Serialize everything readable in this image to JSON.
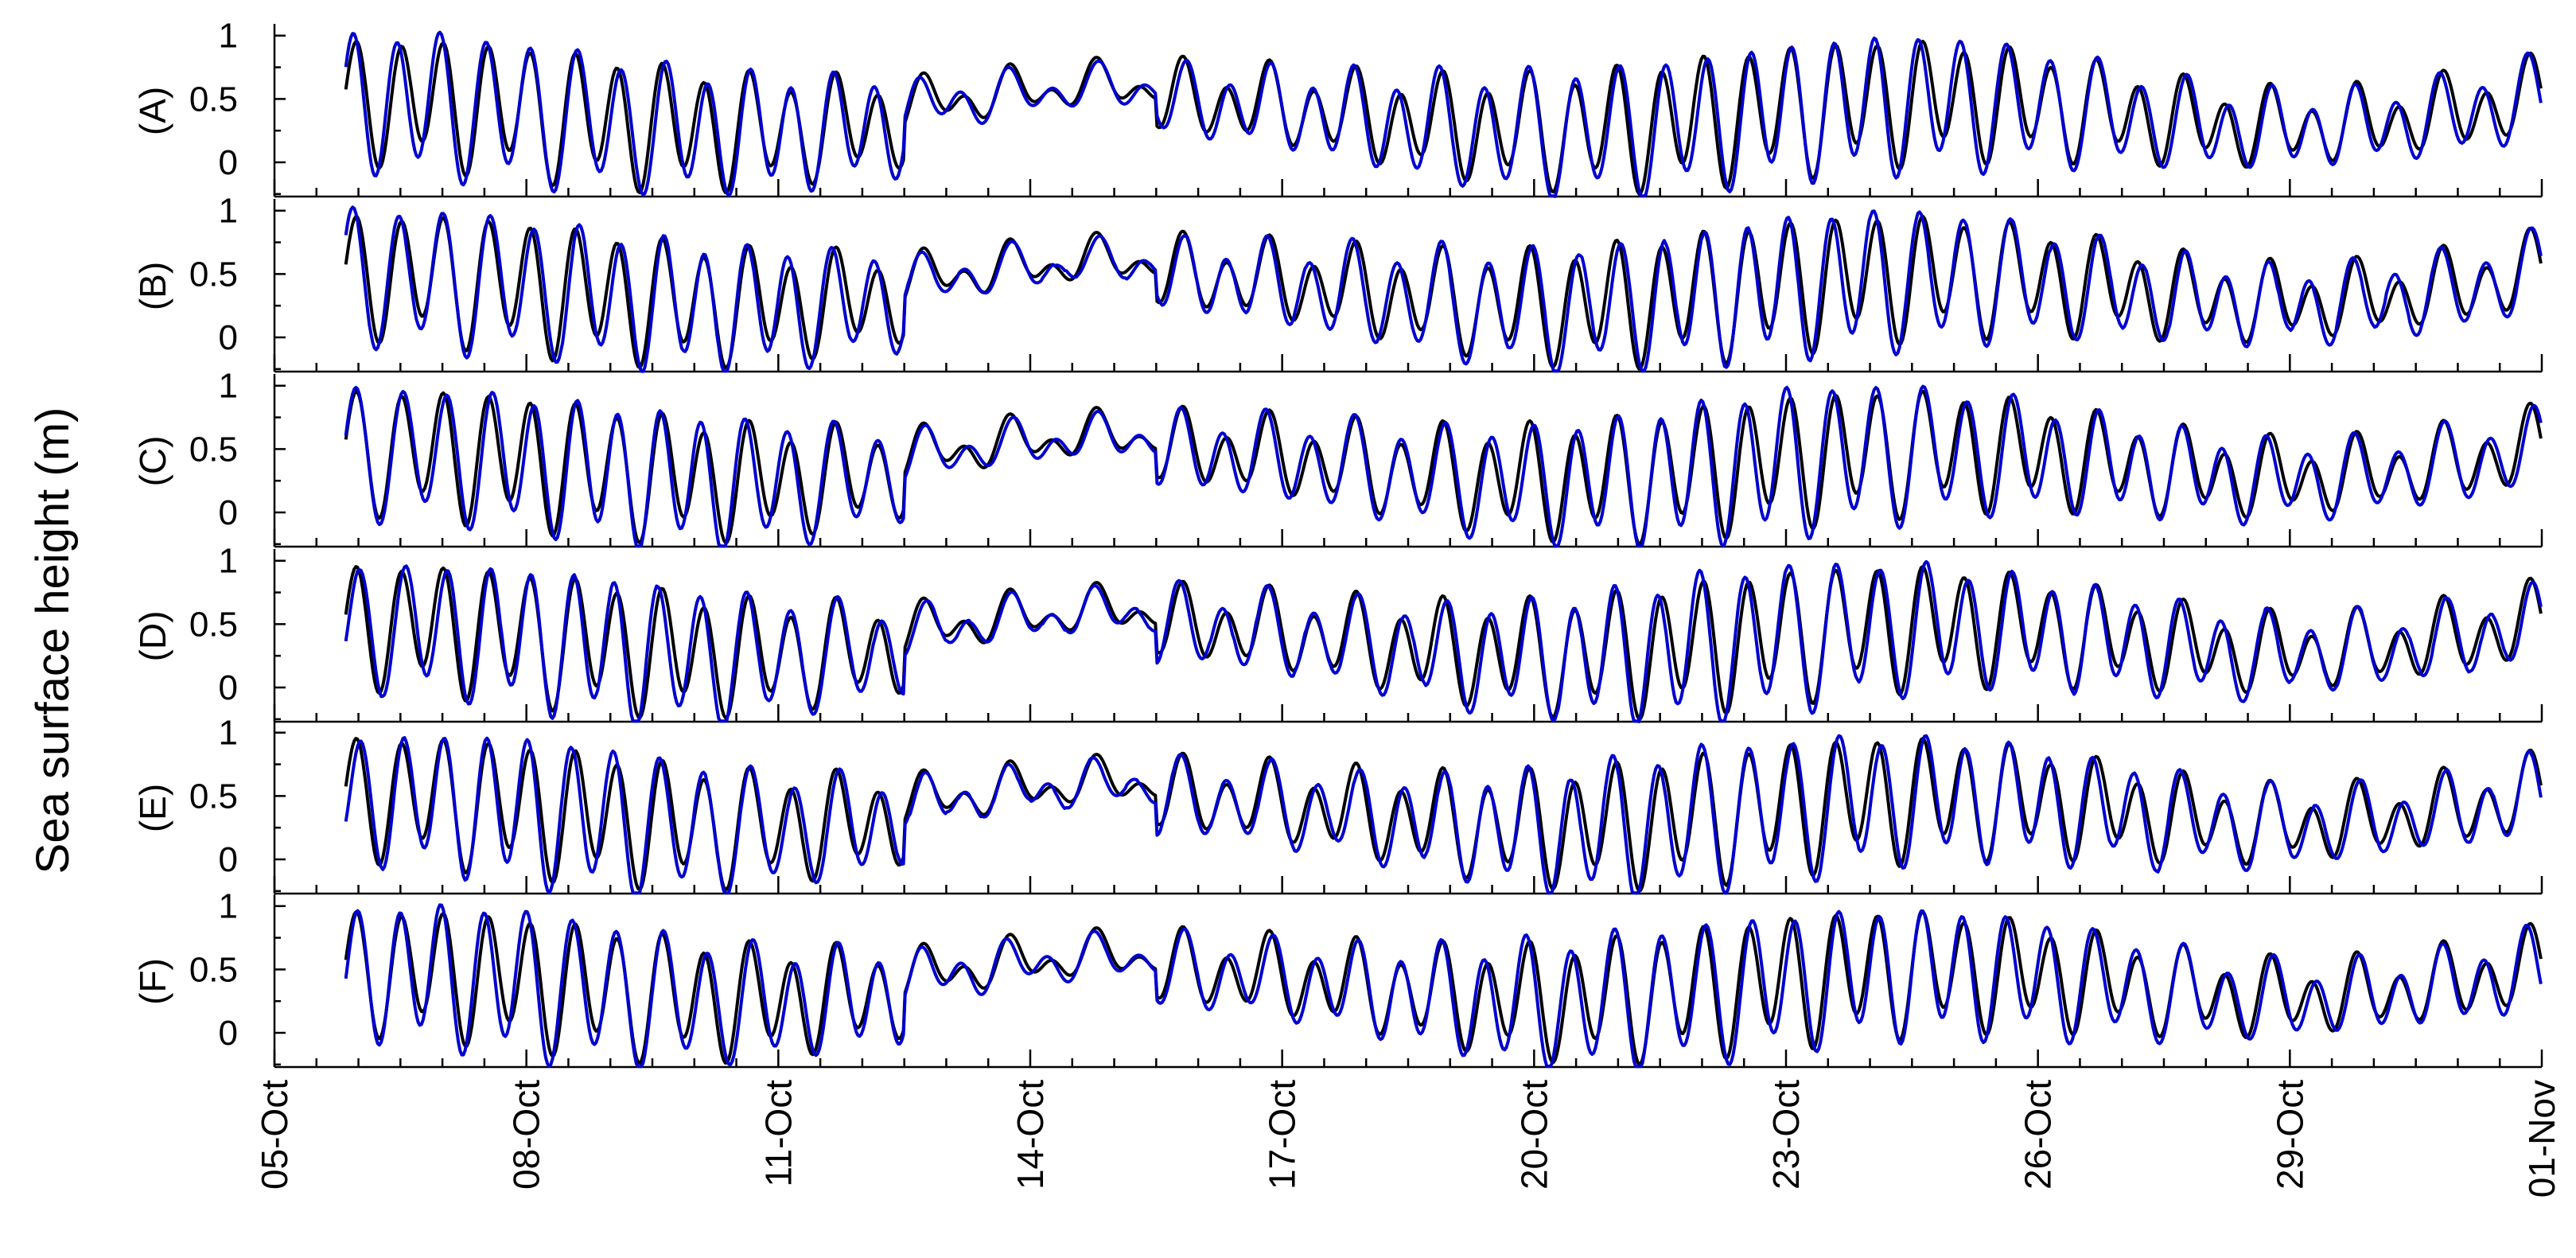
{
  "chart_data": {
    "type": "line",
    "ylabel": "Sea surface height (m)",
    "xlabel": "",
    "x_tick_labels": [
      "05-Oct",
      "08-Oct",
      "11-Oct",
      "14-Oct",
      "17-Oct",
      "20-Oct",
      "23-Oct",
      "26-Oct",
      "29-Oct",
      "01-Nov"
    ],
    "x_tick_days": [
      0,
      3,
      6,
      9,
      12,
      15,
      18,
      21,
      24,
      27
    ],
    "xlim_days": [
      0,
      27
    ],
    "y_tick_labels": [
      "0",
      "0.5",
      "1"
    ],
    "y_tick_values": [
      0,
      0.5,
      1
    ],
    "ylim": [
      -0.27,
      1.08
    ],
    "grid": false,
    "colors": {
      "observed": "#000000",
      "model": "#0000d0"
    },
    "panels": [
      {
        "label": "(A)"
      },
      {
        "label": "(B)"
      },
      {
        "label": "(C)"
      },
      {
        "label": "(D)"
      },
      {
        "label": "(E)"
      },
      {
        "label": "(F)"
      }
    ],
    "series_note_unused": null
  }
}
